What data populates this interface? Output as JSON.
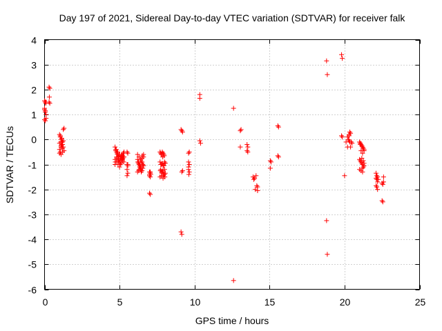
{
  "chart_data": {
    "type": "scatter",
    "title": "Day 197 of 2021, Sidereal Day-to-day VTEC variation (SDTVAR) for receiver falk",
    "xlabel": "GPS time / hours",
    "ylabel": "SDTVAR / TECUs",
    "xlim": [
      0,
      25
    ],
    "ylim": [
      -6,
      4
    ],
    "xticks": [
      "0",
      "5",
      "10",
      "15",
      "20",
      "25"
    ],
    "yticks": [
      "-6",
      "-5",
      "-4",
      "-3",
      "-2",
      "-1",
      "0",
      "1",
      "2",
      "3",
      "4"
    ],
    "grid": true,
    "marker": "+",
    "color": "#ff0000",
    "series": [
      {
        "name": "SDTVAR",
        "x": [
          0.0,
          0.05,
          0.08,
          0.1,
          0.0,
          0.05,
          0.1,
          0.0,
          0.05,
          0.1,
          0.0,
          0.05,
          0.3,
          0.35,
          0.32,
          0.3,
          0.35,
          1.0,
          1.05,
          1.1,
          1.15,
          1.2,
          1.25,
          1.0,
          1.05,
          1.1,
          1.15,
          1.2,
          1.0,
          1.1,
          1.2,
          1.05,
          1.15,
          1.25,
          1.0,
          1.1,
          1.2,
          1.3,
          1.25,
          1.3,
          1.08,
          1.18,
          1.12,
          4.7,
          4.75,
          4.8,
          4.85,
          4.9,
          4.95,
          5.0,
          5.05,
          5.1,
          5.15,
          5.2,
          5.25,
          5.3,
          4.7,
          4.8,
          4.9,
          5.0,
          5.1,
          5.2,
          5.3,
          4.75,
          4.85,
          4.95,
          5.05,
          5.15,
          5.25,
          4.7,
          4.8,
          4.9,
          5.0,
          5.1,
          5.2,
          4.72,
          4.82,
          4.92,
          5.02,
          5.12,
          5.22,
          4.78,
          4.88,
          4.98,
          5.08,
          5.18,
          5.28,
          5.5,
          5.55,
          5.5,
          5.55,
          5.5,
          5.55,
          5.5,
          5.55,
          6.2,
          6.25,
          6.3,
          6.35,
          6.4,
          6.45,
          6.5,
          6.55,
          6.6,
          6.2,
          6.3,
          6.4,
          6.5,
          6.6,
          6.25,
          6.35,
          6.45,
          6.55,
          6.2,
          6.3,
          6.4,
          6.5,
          6.6,
          6.22,
          6.32,
          6.42,
          6.52,
          6.28,
          6.38,
          6.48,
          6.58,
          7.0,
          7.05,
          7.0,
          7.05,
          7.0,
          7.05,
          7.0,
          7.05,
          7.08,
          7.7,
          7.75,
          7.8,
          7.85,
          7.9,
          7.95,
          8.0,
          8.05,
          7.7,
          7.8,
          7.9,
          8.0,
          7.75,
          7.85,
          7.95,
          8.05,
          7.7,
          7.8,
          7.9,
          8.0,
          7.72,
          7.82,
          7.92,
          8.02,
          7.78,
          7.88,
          7.98,
          7.75,
          7.85,
          7.95,
          7.8,
          7.9,
          8.0,
          9.1,
          9.15,
          9.2,
          9.1,
          9.15,
          9.2,
          9.15,
          9.6,
          9.65,
          9.6,
          9.65,
          9.6,
          9.65,
          9.62,
          9.6,
          10.35,
          10.35,
          10.35,
          10.4,
          12.6,
          12.6,
          13.05,
          13.1,
          13.05,
          13.5,
          13.55,
          13.5,
          13.55,
          13.9,
          13.95,
          14.0,
          14.1,
          14.15,
          14.2,
          14.05,
          14.2,
          15.05,
          15.1,
          15.05,
          15.55,
          15.6,
          15.55,
          15.6,
          18.8,
          18.85,
          18.8,
          18.85,
          19.8,
          19.85,
          19.8,
          19.85,
          20.0,
          20.1,
          20.2,
          20.3,
          20.35,
          20.4,
          20.3,
          20.2,
          20.4,
          20.35,
          20.3,
          20.25,
          20.45,
          20.5,
          21.0,
          21.05,
          21.1,
          21.15,
          21.2,
          21.25,
          21.3,
          21.0,
          21.1,
          21.2,
          21.3,
          21.05,
          21.15,
          21.25,
          21.0,
          21.1,
          21.2,
          21.3,
          21.05,
          21.15,
          21.25,
          21.1,
          21.2,
          21.3,
          21.15,
          21.25,
          21.05,
          21.2,
          22.1,
          22.15,
          22.2,
          22.25,
          22.1,
          22.15,
          22.2,
          22.1,
          22.15,
          22.2,
          22.5,
          22.55,
          22.6,
          22.5,
          22.55,
          22.6
        ],
        "y": [
          1.55,
          1.5,
          1.45,
          1.5,
          1.2,
          1.1,
          1.0,
          0.8,
          0.75,
          0.85,
          1.25,
          1.15,
          2.1,
          2.05,
          1.7,
          1.5,
          1.45,
          0.2,
          0.1,
          0.0,
          -0.1,
          -0.2,
          -0.3,
          -0.4,
          -0.5,
          -0.3,
          -0.2,
          -0.1,
          -0.55,
          -0.6,
          -0.5,
          0.15,
          0.05,
          -0.05,
          -0.15,
          -0.25,
          -0.35,
          -0.45,
          0.4,
          0.45,
          -0.1,
          -0.2,
          -0.3,
          -0.3,
          -0.4,
          -0.5,
          -0.6,
          -0.7,
          -0.8,
          -0.9,
          -1.0,
          -0.85,
          -0.75,
          -0.65,
          -0.55,
          -0.5,
          -0.8,
          -0.9,
          -1.0,
          -1.1,
          -0.95,
          -0.85,
          -0.7,
          -0.45,
          -0.55,
          -0.65,
          -0.75,
          -0.6,
          -0.7,
          -1.0,
          -0.7,
          -0.8,
          -0.6,
          -0.7,
          -0.8,
          -0.9,
          -0.75,
          -0.85,
          -0.95,
          -0.65,
          -0.75,
          -0.4,
          -0.5,
          -0.6,
          -0.7,
          -0.8,
          -0.9,
          -0.5,
          -0.55,
          -1.0,
          -1.05,
          -1.2,
          -1.35,
          -1.45,
          -1.0,
          -0.8,
          -0.9,
          -1.0,
          -1.1,
          -1.2,
          -1.3,
          -1.25,
          -1.15,
          -1.05,
          -0.6,
          -0.7,
          -0.8,
          -0.9,
          -0.7,
          -0.95,
          -1.05,
          -1.15,
          -1.0,
          -1.3,
          -1.2,
          -1.1,
          -0.75,
          -0.6,
          -0.9,
          -1.0,
          -0.85,
          -0.65,
          -1.25,
          -1.15,
          -0.95,
          -1.05,
          -1.3,
          -1.35,
          -1.4,
          -1.5,
          -1.45,
          -1.3,
          -2.15,
          -2.2,
          -1.4,
          -0.5,
          -0.55,
          -0.6,
          -0.5,
          -0.55,
          -0.6,
          -0.9,
          -0.95,
          -0.9,
          -1.0,
          -1.05,
          -0.95,
          -1.2,
          -1.3,
          -1.4,
          -1.35,
          -1.5,
          -1.45,
          -1.55,
          -1.4,
          -1.25,
          -1.35,
          -1.45,
          -1.5,
          -0.6,
          -0.7,
          -0.65,
          -1.0,
          -0.95,
          -1.05,
          -1.3,
          -1.25,
          -1.2,
          0.4,
          0.35,
          0.3,
          -3.7,
          -3.8,
          -1.25,
          -1.3,
          -0.55,
          -0.5,
          -0.9,
          -1.0,
          -1.1,
          -1.3,
          -1.4,
          -1.2,
          1.8,
          1.65,
          -0.05,
          -0.15,
          1.25,
          -5.65,
          0.35,
          0.4,
          -0.3,
          -0.2,
          -0.3,
          -0.45,
          -0.5,
          -1.5,
          -1.6,
          -1.55,
          -1.45,
          -1.85,
          -1.9,
          -2.0,
          -2.05,
          -0.85,
          -0.9,
          -1.15,
          0.55,
          0.5,
          -0.65,
          -0.7,
          3.15,
          2.6,
          -3.25,
          -4.6,
          3.4,
          3.25,
          0.15,
          0.1,
          -1.45,
          -0.1,
          0.1,
          0.2,
          0.3,
          0.25,
          0.15,
          -0.3,
          -0.3,
          -0.1,
          -0.05,
          0.0,
          -0.1,
          -0.15,
          -0.1,
          -0.15,
          -0.2,
          -0.25,
          -0.3,
          -0.35,
          -0.45,
          -0.8,
          -0.9,
          -1.0,
          -1.05,
          -0.85,
          -0.95,
          -1.1,
          -1.2,
          -1.25,
          -1.15,
          -0.95,
          -0.15,
          -0.25,
          -0.35,
          -0.45,
          -0.55,
          -0.4,
          -0.75,
          -0.85,
          -0.2,
          -1.3,
          -1.35,
          -1.45,
          -1.5,
          -1.6,
          -1.85,
          -1.9,
          -2.0,
          -1.55,
          -1.6,
          -1.7,
          -1.75,
          -1.8,
          -1.7,
          -2.45,
          -2.5,
          -1.5
        ]
      }
    ]
  }
}
